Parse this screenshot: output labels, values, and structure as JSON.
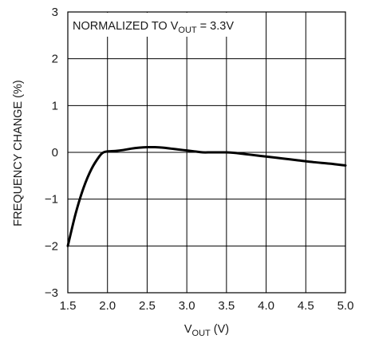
{
  "chart_data": {
    "type": "line",
    "annotation": {
      "prefix": "NORMALIZED TO V",
      "sub": "OUT",
      "suffix": " = 3.3V"
    },
    "xlabel": {
      "main": "V",
      "sub": "OUT",
      "suffix": " (V)"
    },
    "ylabel": "FREQUENCY CHANGE (%)",
    "xlim": [
      1.5,
      5.0
    ],
    "ylim": [
      -3,
      3
    ],
    "x_ticks": [
      1.5,
      2.0,
      2.5,
      3.0,
      3.5,
      4.0,
      4.5,
      5.0
    ],
    "x_tick_labels": [
      "1.5",
      "2.0",
      "2.5",
      "3.0",
      "3.5",
      "4.0",
      "4.5",
      "5.0"
    ],
    "y_ticks": [
      3,
      2,
      1,
      0,
      -1,
      -2,
      -3
    ],
    "y_tick_labels": [
      "3",
      "2",
      "1",
      "0",
      "−1",
      "−2",
      "−3"
    ],
    "grid": true,
    "series": [
      {
        "x": [
          1.5,
          1.6,
          1.7,
          1.8,
          1.9,
          1.95,
          2.0,
          2.1,
          2.2,
          2.3,
          2.4,
          2.5,
          2.6,
          2.7,
          2.8,
          2.9,
          3.0,
          3.1,
          3.2,
          3.3,
          3.4,
          3.5,
          3.6,
          3.7,
          3.8,
          3.9,
          4.0,
          4.2,
          4.4,
          4.6,
          4.8,
          5.0
        ],
        "y": [
          -2.0,
          -1.3,
          -0.75,
          -0.35,
          -0.08,
          0.0,
          0.02,
          0.03,
          0.05,
          0.08,
          0.1,
          0.11,
          0.11,
          0.1,
          0.08,
          0.06,
          0.04,
          0.02,
          0.0,
          0.0,
          0.0,
          0.0,
          -0.01,
          -0.03,
          -0.05,
          -0.07,
          -0.09,
          -0.13,
          -0.17,
          -0.21,
          -0.24,
          -0.28
        ],
        "color": "#000000"
      }
    ]
  }
}
